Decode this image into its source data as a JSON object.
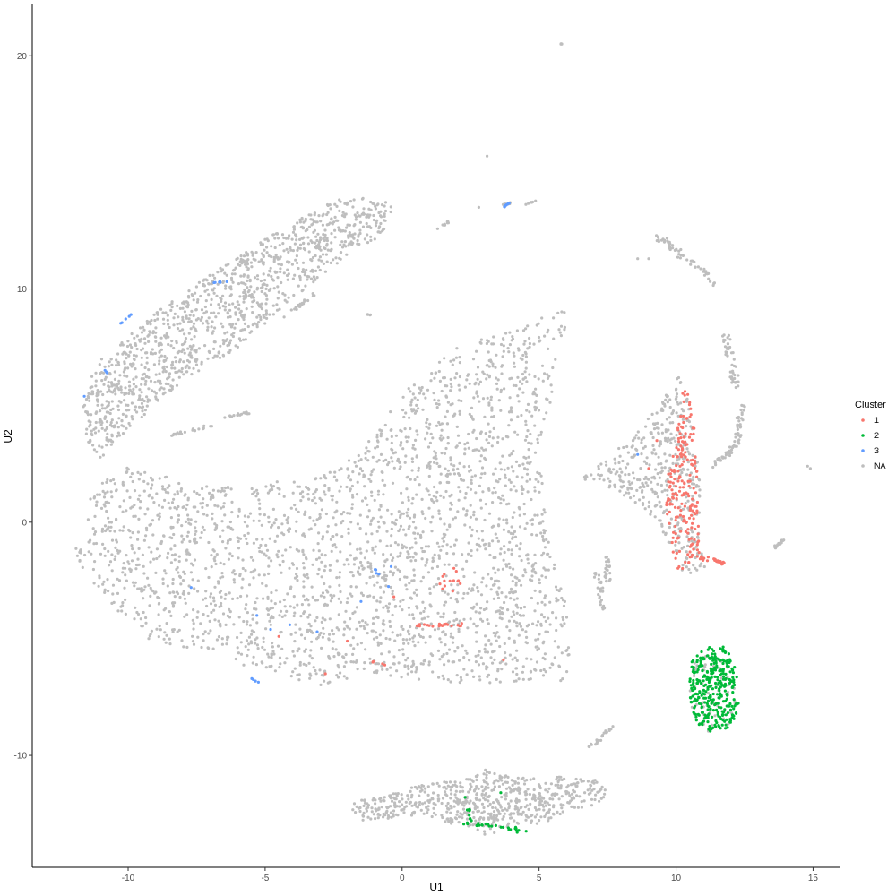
{
  "chart_data": {
    "type": "scatter",
    "xlabel": "U1",
    "ylabel": "U2",
    "xlim": [
      -13.5,
      16
    ],
    "ylim": [
      -14.8,
      22.2
    ],
    "xticks": [
      -10,
      -5,
      0,
      5,
      10,
      15
    ],
    "yticks": [
      -10,
      0,
      10,
      20
    ],
    "grid": false,
    "legend": {
      "title": "Cluster",
      "position": "right",
      "entries": [
        {
          "label": "1",
          "color": "#F8766D"
        },
        {
          "label": "2",
          "color": "#00BA38"
        },
        {
          "label": "3",
          "color": "#619CFF"
        },
        {
          "label": "NA",
          "color": "#BEBEBE"
        }
      ]
    },
    "series": [
      {
        "name": "NA",
        "color": "#BEBEBE",
        "regions": [
          {
            "shape": "poly",
            "n": 2600,
            "pts": [
              [
                -12,
                -1
              ],
              [
                -11.4,
                1
              ],
              [
                -10.5,
                2.5
              ],
              [
                -7,
                1.5
              ],
              [
                -3,
                2
              ],
              [
                -1.5,
                3
              ],
              [
                0,
                5.5
              ],
              [
                2,
                7.5
              ],
              [
                4.5,
                8.5
              ],
              [
                6.1,
                9.2
              ],
              [
                5.6,
                6
              ],
              [
                5,
                3
              ],
              [
                5.3,
                0
              ],
              [
                5.9,
                -3
              ],
              [
                6.2,
                -5
              ],
              [
                6,
                -6.8
              ],
              [
                4.5,
                -6.9
              ],
              [
                2.5,
                -6.9
              ],
              [
                1,
                -6.8
              ],
              [
                -1,
                -6.5
              ],
              [
                -3,
                -7
              ],
              [
                -5,
                -6.5
              ],
              [
                -7,
                -5.6
              ],
              [
                -9.5,
                -5
              ],
              [
                -11,
                -3
              ],
              [
                -12,
                -1.5
              ]
            ]
          },
          {
            "shape": "poly",
            "n": 1200,
            "pts": [
              [
                -11.7,
                5.5
              ],
              [
                -11,
                7
              ],
              [
                -9,
                9
              ],
              [
                -6.5,
                11
              ],
              [
                -4.5,
                12.5
              ],
              [
                -2.5,
                13.8
              ],
              [
                -1.3,
                14
              ],
              [
                -0.3,
                13.6
              ],
              [
                -0.7,
                12.2
              ],
              [
                -2.5,
                11
              ],
              [
                -4.5,
                9
              ],
              [
                -6,
                7.5
              ],
              [
                -8,
                6
              ],
              [
                -10,
                4
              ],
              [
                -11,
                2.6
              ],
              [
                -11.5,
                3.5
              ],
              [
                -11.7,
                5
              ]
            ]
          },
          {
            "shape": "poly",
            "n": 420,
            "pts": [
              [
                6.6,
                2
              ],
              [
                7.5,
                2.8
              ],
              [
                8.5,
                3.8
              ],
              [
                9.3,
                5
              ],
              [
                10.1,
                6.3
              ],
              [
                10.5,
                5
              ],
              [
                10.9,
                2
              ],
              [
                10.9,
                -1
              ],
              [
                11.2,
                -2.2
              ],
              [
                10.3,
                -2.3
              ],
              [
                9.8,
                -1
              ],
              [
                9.2,
                0.2
              ],
              [
                8.3,
                1
              ],
              [
                7.2,
                1.7
              ],
              [
                6.6,
                1.8
              ]
            ]
          },
          {
            "shape": "poly",
            "n": 650,
            "pts": [
              [
                -1.8,
                -12
              ],
              [
                -0.5,
                -11.6
              ],
              [
                1,
                -11.2
              ],
              [
                2.5,
                -11
              ],
              [
                3,
                -10.6
              ],
              [
                4,
                -10.9
              ],
              [
                5.5,
                -10.9
              ],
              [
                7,
                -11
              ],
              [
                7.6,
                -11.7
              ],
              [
                7,
                -12.2
              ],
              [
                5.8,
                -12.5
              ],
              [
                5.2,
                -12.9
              ],
              [
                4,
                -13
              ],
              [
                3,
                -13.5
              ],
              [
                2,
                -13
              ],
              [
                0.5,
                -12.6
              ],
              [
                -1.5,
                -12.8
              ],
              [
                -1.8,
                -12.4
              ]
            ]
          },
          {
            "shape": "poly",
            "n": 60,
            "pts": [
              [
                10.5,
                -6
              ],
              [
                11.3,
                -5.6
              ],
              [
                12,
                -5.8
              ],
              [
                12.3,
                -7.5
              ],
              [
                12,
                -8.8
              ],
              [
                11.2,
                -9
              ],
              [
                10.6,
                -8.5
              ],
              [
                10.5,
                -7
              ]
            ]
          },
          {
            "shape": "line",
            "n": 55,
            "from": [
              9.3,
              12.3
            ],
            "to": [
              11.5,
              10.2
            ],
            "jitter": 0.15
          },
          {
            "shape": "line",
            "n": 45,
            "from": [
              11.8,
              8
            ],
            "to": [
              12.2,
              5.8
            ],
            "jitter": 0.15
          },
          {
            "shape": "line",
            "n": 35,
            "from": [
              12.4,
              5
            ],
            "to": [
              12.2,
              3.2
            ],
            "jitter": 0.12
          },
          {
            "shape": "line",
            "n": 28,
            "from": [
              11.4,
              2.4
            ],
            "to": [
              12.1,
              3.2
            ],
            "jitter": 0.1
          },
          {
            "shape": "line",
            "n": 25,
            "from": [
              7.5,
              -1.5
            ],
            "to": [
              7.5,
              -2.6
            ],
            "jitter": 0.1
          },
          {
            "shape": "line",
            "n": 25,
            "from": [
              7.4,
              -3.8
            ],
            "to": [
              7.1,
              -2.2
            ],
            "jitter": 0.1
          },
          {
            "shape": "line",
            "n": 20,
            "from": [
              13.6,
              -1.1
            ],
            "to": [
              13.9,
              -0.8
            ],
            "jitter": 0.05
          },
          {
            "shape": "line",
            "n": 25,
            "from": [
              6.8,
              -9.7
            ],
            "to": [
              7.7,
              -8.8
            ],
            "jitter": 0.08
          },
          {
            "shape": "line",
            "n": 20,
            "from": [
              -8.5,
              3.7
            ],
            "to": [
              -6.8,
              4.2
            ],
            "jitter": 0.05
          },
          {
            "shape": "line",
            "n": 18,
            "from": [
              -6.5,
              4.5
            ],
            "to": [
              -5.6,
              4.7
            ],
            "jitter": 0.05
          },
          {
            "shape": "line",
            "n": 20,
            "from": [
              -4.3,
              8.8
            ],
            "to": [
              -3.2,
              9.8
            ],
            "jitter": 0.06
          },
          {
            "shape": "line",
            "n": 10,
            "from": [
              1.3,
              12.6
            ],
            "to": [
              1.7,
              12.9
            ],
            "jitter": 0.05
          },
          {
            "shape": "line",
            "n": 10,
            "from": [
              3.6,
              13.6
            ],
            "to": [
              4,
              13.7
            ],
            "jitter": 0.03
          },
          {
            "shape": "line",
            "n": 6,
            "from": [
              4.5,
              13.6
            ],
            "to": [
              4.9,
              13.8
            ],
            "jitter": 0.02
          },
          {
            "shape": "line",
            "n": 5,
            "from": [
              5.8,
              20.5
            ],
            "to": [
              5.9,
              20.5
            ],
            "jitter": 0.02
          },
          {
            "shape": "line",
            "n": 4,
            "from": [
              -1.3,
              8.9
            ],
            "to": [
              -1.1,
              8.9
            ],
            "jitter": 0.02
          }
        ],
        "points": [
          [
            3.1,
            15.7
          ],
          [
            9.0,
            11.3
          ],
          [
            8.6,
            11.3
          ],
          [
            14.8,
            2.4
          ],
          [
            14.9,
            2.3
          ],
          [
            2.8,
            13.5
          ]
        ]
      },
      {
        "name": "1",
        "color": "#F8766D",
        "regions": [
          {
            "shape": "poly",
            "n": 210,
            "pts": [
              [
                9.9,
                3
              ],
              [
                10.1,
                4.5
              ],
              [
                10.3,
                6.1
              ],
              [
                10.6,
                5
              ],
              [
                10.8,
                2.5
              ],
              [
                10.8,
                0
              ],
              [
                10.9,
                -1.2
              ],
              [
                11.3,
                -1.8
              ],
              [
                10.6,
                -2.1
              ],
              [
                10.1,
                -2.3
              ],
              [
                9.9,
                -1.5
              ],
              [
                9.7,
                0
              ],
              [
                9.6,
                1.5
              ]
            ]
          },
          {
            "shape": "line",
            "n": 20,
            "from": [
              11.2,
              -1.5
            ],
            "to": [
              11.8,
              -1.8
            ],
            "jitter": 0.05
          },
          {
            "shape": "line",
            "n": 22,
            "from": [
              0.5,
              -4.4
            ],
            "to": [
              2.2,
              -4.4
            ],
            "jitter": 0.07
          },
          {
            "shape": "poly",
            "n": 14,
            "pts": [
              [
                1.2,
                -2.4
              ],
              [
                2.2,
                -1.4
              ],
              [
                2.3,
                -2.8
              ],
              [
                1.5,
                -3.2
              ]
            ]
          },
          {
            "shape": "line",
            "n": 4,
            "from": [
              -1.3,
              -5.9
            ],
            "to": [
              -0.3,
              -6.2
            ],
            "jitter": 0.05
          }
        ],
        "points": [
          [
            9.3,
            3.5
          ],
          [
            -2.8,
            -6.5
          ],
          [
            -4.5,
            -4.9
          ],
          [
            -2,
            -5.1
          ],
          [
            3.7,
            -5.9
          ],
          [
            -0.3,
            -3.2
          ],
          [
            9,
            2.3
          ]
        ]
      },
      {
        "name": "2",
        "color": "#00BA38",
        "regions": [
          {
            "shape": "poly",
            "n": 330,
            "pts": [
              [
                10.6,
                -5.7
              ],
              [
                11.3,
                -5.3
              ],
              [
                11.9,
                -5.3
              ],
              [
                12.2,
                -6.2
              ],
              [
                12.3,
                -7.7
              ],
              [
                12.1,
                -8.8
              ],
              [
                11.3,
                -9
              ],
              [
                10.7,
                -8.6
              ],
              [
                10.5,
                -7.5
              ],
              [
                10.5,
                -6.3
              ]
            ]
          },
          {
            "shape": "line",
            "n": 24,
            "from": [
              2.3,
              -12.9
            ],
            "to": [
              4.5,
              -13.2
            ],
            "jitter": 0.07
          },
          {
            "shape": "line",
            "n": 8,
            "from": [
              2.4,
              -12.2
            ],
            "to": [
              2.5,
              -12.8
            ],
            "jitter": 0.05
          }
        ],
        "points": [
          [
            2.3,
            -11.8
          ],
          [
            3.6,
            -11.6
          ],
          [
            3.9,
            -13.2
          ],
          [
            4.2,
            -13.3
          ]
        ]
      },
      {
        "name": "3",
        "color": "#619CFF",
        "regions": [
          {
            "shape": "line",
            "n": 9,
            "from": [
              3.7,
              13.5
            ],
            "to": [
              3.9,
              13.7
            ],
            "jitter": 0.02
          },
          {
            "shape": "line",
            "n": 6,
            "from": [
              -6.9,
              10.3
            ],
            "to": [
              -6.4,
              10.3
            ],
            "jitter": 0.03
          },
          {
            "shape": "line",
            "n": 5,
            "from": [
              -10.3,
              8.5
            ],
            "to": [
              -9.9,
              8.9
            ],
            "jitter": 0.03
          },
          {
            "shape": "line",
            "n": 6,
            "from": [
              -1,
              -2
            ],
            "to": [
              -0.5,
              -2.8
            ],
            "jitter": 0.06
          },
          {
            "shape": "line",
            "n": 5,
            "from": [
              -5.5,
              -6.7
            ],
            "to": [
              -5.2,
              -6.9
            ],
            "jitter": 0.02
          },
          {
            "shape": "line",
            "n": 4,
            "from": [
              -10.7,
              6.3
            ],
            "to": [
              -10.9,
              6.6
            ],
            "jitter": 0.03
          }
        ],
        "points": [
          [
            -11.6,
            5.4
          ],
          [
            -0.4,
            -1.9
          ],
          [
            -5.3,
            -4
          ],
          [
            -4.8,
            -4.6
          ],
          [
            -4.1,
            -4.4
          ],
          [
            -3.1,
            -4.7
          ],
          [
            -7.7,
            -2.8
          ],
          [
            -1.5,
            -3.4
          ],
          [
            8.6,
            2.9
          ]
        ]
      }
    ]
  }
}
